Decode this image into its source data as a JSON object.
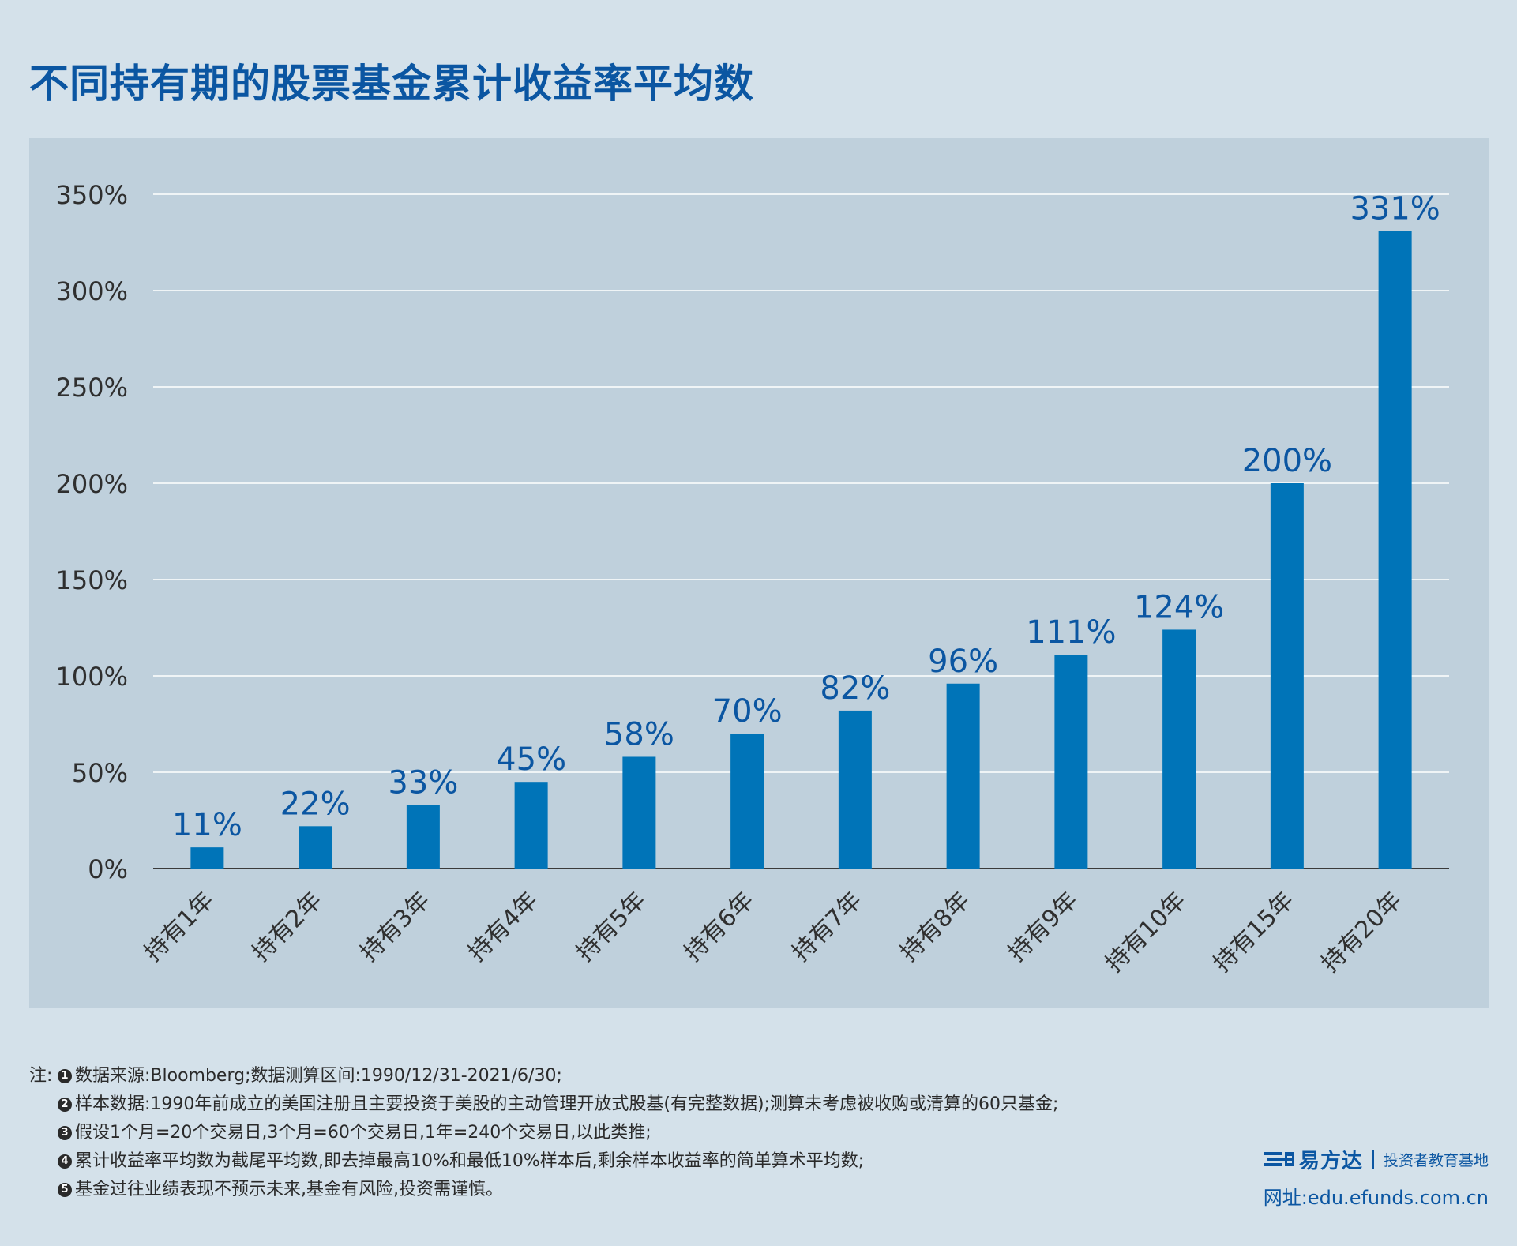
{
  "title": "不同持有期的股票基金累计收益率平均数",
  "chart_data": {
    "type": "bar",
    "categories": [
      "持有1年",
      "持有2年",
      "持有3年",
      "持有4年",
      "持有5年",
      "持有6年",
      "持有7年",
      "持有8年",
      "持有9年",
      "持有10年",
      "持有15年",
      "持有20年"
    ],
    "values": [
      11,
      22,
      33,
      45,
      58,
      70,
      82,
      96,
      111,
      124,
      200,
      331
    ],
    "data_labels": [
      "11%",
      "22%",
      "33%",
      "45%",
      "58%",
      "70%",
      "82%",
      "96%",
      "111%",
      "124%",
      "200%",
      "331%"
    ],
    "yticks": [
      0,
      50,
      100,
      150,
      200,
      250,
      300,
      350
    ],
    "ytick_labels": [
      "0%",
      "50%",
      "100%",
      "150%",
      "200%",
      "250%",
      "300%",
      "350%"
    ],
    "ylim": [
      0,
      350
    ],
    "grid": true,
    "bar_color": "#0074b8",
    "label_color": "#0b56a2",
    "gridline_color": "#ffffff"
  },
  "notes": {
    "prefix": "注:",
    "items": [
      {
        "num": "1",
        "text": "数据来源:Bloomberg;数据测算区间:1990/12/31-2021/6/30;"
      },
      {
        "num": "2",
        "text": "样本数据:1990年前成立的美国注册且主要投资于美股的主动管理开放式股基(有完整数据);测算未考虑被收购或清算的60只基金;"
      },
      {
        "num": "3",
        "text": "假设1个月=20个交易日,3个月=60个交易日,1年=240个交易日,以此类推;"
      },
      {
        "num": "4",
        "text": "累计收益率平均数为截尾平均数,即去掉最高10%和最低10%样本后,剩余样本收益率的简单算术平均数;"
      },
      {
        "num": "5",
        "text": "基金过往业绩表现不预示未来,基金有风险,投资需谨慎。"
      }
    ]
  },
  "brand": {
    "logo_icon": "efunds-logo-icon",
    "name": "易方达",
    "sub": "投资者教育基地",
    "url": "网址:edu.efunds.com.cn"
  }
}
